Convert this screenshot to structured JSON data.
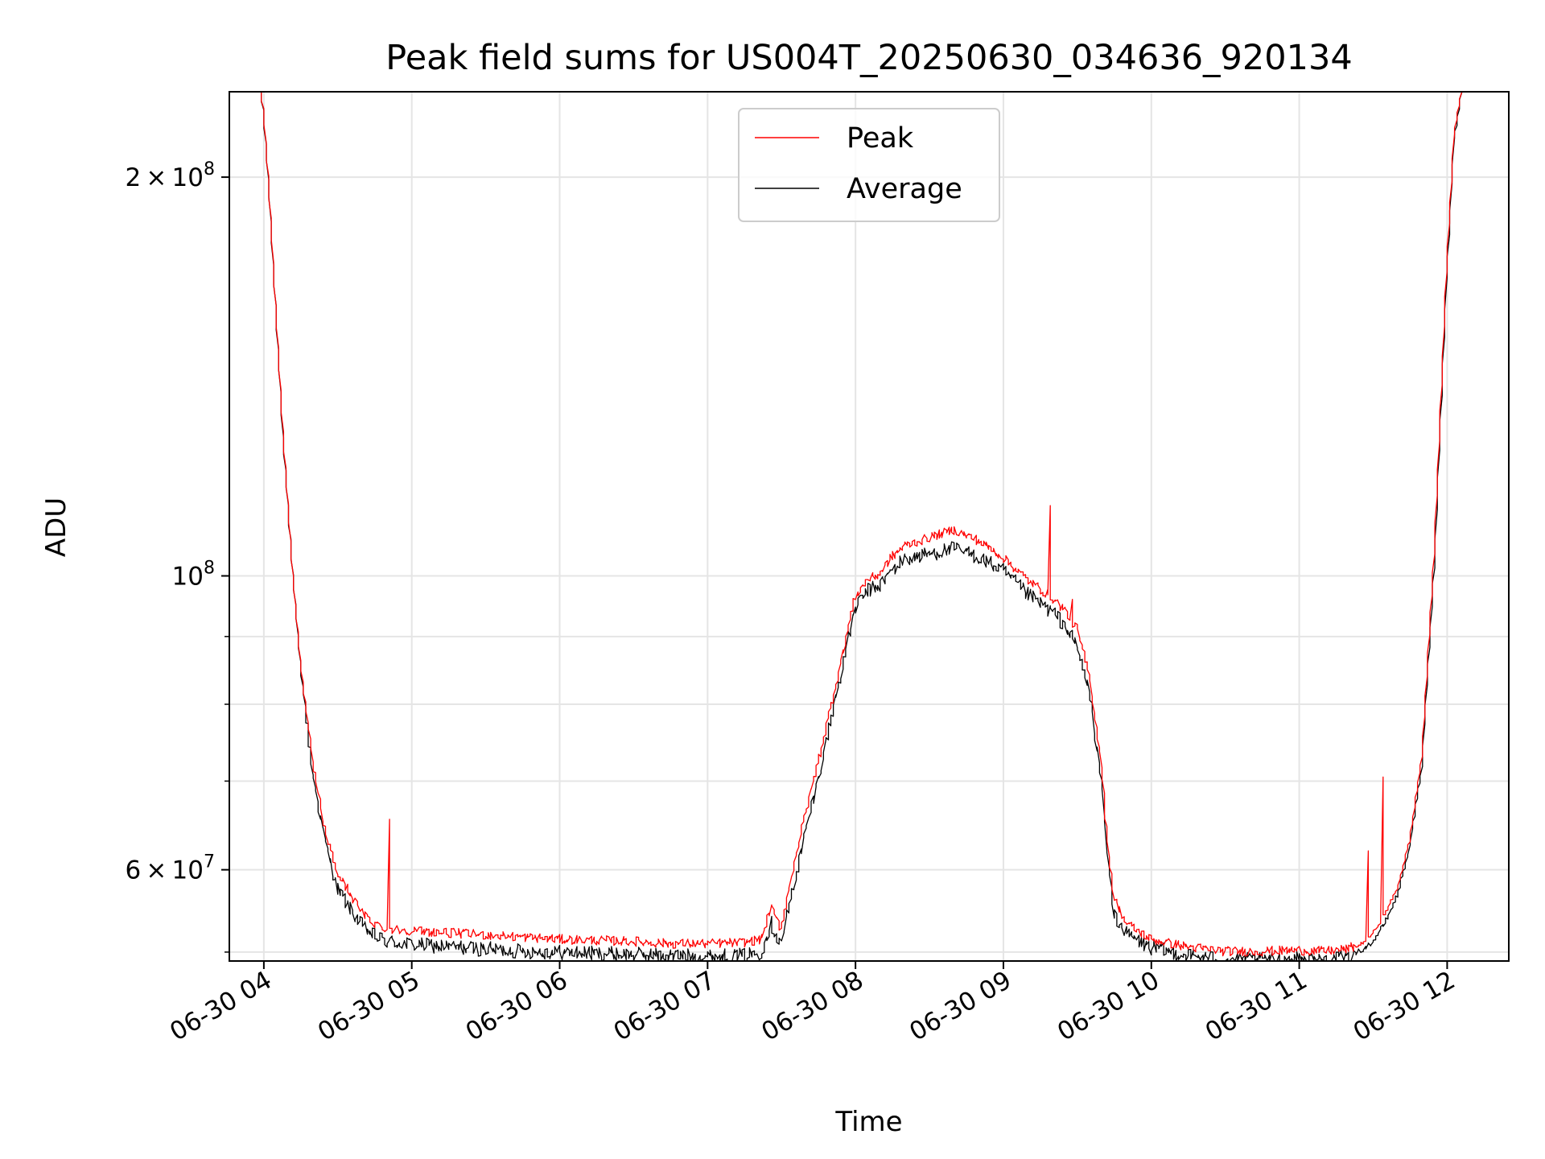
{
  "chart_data": {
    "type": "line",
    "title": "Peak field sums for US004T_20250630_034636_920134",
    "xlabel": "Time",
    "ylabel": "ADU",
    "y_scale": "log",
    "ylim": [
      51200000,
      232000000
    ],
    "xlim": [
      "2025-06-30 03:46",
      "2025-06-30 12:25"
    ],
    "grid": true,
    "legend_position": "upper center",
    "x_tick_labels": [
      "06-30 04",
      "06-30 05",
      "06-30 06",
      "06-30 07",
      "06-30 08",
      "06-30 09",
      "06-30 10",
      "06-30 11",
      "06-30 12"
    ],
    "x_ticks": [
      "2025-06-30 04:00",
      "2025-06-30 05:00",
      "2025-06-30 06:00",
      "2025-06-30 07:00",
      "2025-06-30 08:00",
      "2025-06-30 09:00",
      "2025-06-30 10:00",
      "2025-06-30 11:00",
      "2025-06-30 12:00"
    ],
    "y_major_ticks": [
      {
        "value": 60000000,
        "mantissa": "6",
        "exponent": "7"
      },
      {
        "value": 100000000,
        "mantissa": "",
        "exponent": "8"
      },
      {
        "value": 200000000,
        "mantissa": "2",
        "exponent": "8"
      }
    ],
    "y_minor_ticks": [
      52000000,
      70000000,
      80000000,
      90000000
    ],
    "series": [
      {
        "name": "Peak",
        "color": "#ff0000",
        "x": [
          "2025-06-30 03:59",
          "2025-06-30 04:00",
          "2025-06-30 04:02",
          "2025-06-30 04:05",
          "2025-06-30 04:08",
          "2025-06-30 04:12",
          "2025-06-30 04:15",
          "2025-06-30 04:20",
          "2025-06-30 04:25",
          "2025-06-30 04:30",
          "2025-06-30 04:35",
          "2025-06-30 04:40",
          "2025-06-30 04:45",
          "2025-06-30 04:50",
          "2025-06-30 05:00",
          "2025-06-30 05:15",
          "2025-06-30 05:30",
          "2025-06-30 05:45",
          "2025-06-30 06:00",
          "2025-06-30 06:15",
          "2025-06-30 06:30",
          "2025-06-30 06:45",
          "2025-06-30 07:00",
          "2025-06-30 07:15",
          "2025-06-30 07:22",
          "2025-06-30 07:26",
          "2025-06-30 07:30",
          "2025-06-30 07:35",
          "2025-06-30 07:40",
          "2025-06-30 07:45",
          "2025-06-30 07:50",
          "2025-06-30 07:55",
          "2025-06-30 08:00",
          "2025-06-30 08:05",
          "2025-06-30 08:10",
          "2025-06-30 08:15",
          "2025-06-30 08:20",
          "2025-06-30 08:30",
          "2025-06-30 08:40",
          "2025-06-30 08:50",
          "2025-06-30 09:00",
          "2025-06-30 09:10",
          "2025-06-30 09:20",
          "2025-06-30 09:25",
          "2025-06-30 09:30",
          "2025-06-30 09:35",
          "2025-06-30 09:40",
          "2025-06-30 09:42",
          "2025-06-30 09:45",
          "2025-06-30 09:50",
          "2025-06-30 10:00",
          "2025-06-30 10:15",
          "2025-06-30 10:30",
          "2025-06-30 10:45",
          "2025-06-30 11:00",
          "2025-06-30 11:10",
          "2025-06-30 11:20",
          "2025-06-30 11:25",
          "2025-06-30 11:30",
          "2025-06-30 11:35",
          "2025-06-30 11:40",
          "2025-06-30 11:45",
          "2025-06-30 11:50",
          "2025-06-30 11:55",
          "2025-06-30 12:00",
          "2025-06-30 12:03",
          "2025-06-30 12:06"
        ],
        "y": [
          232000000,
          225000000,
          200000000,
          160000000,
          128000000,
          100000000,
          86000000,
          72000000,
          64000000,
          59500000,
          57500000,
          55500000,
          54500000,
          54000000,
          53800000,
          53600000,
          53400000,
          53200000,
          53000000,
          52900000,
          52800000,
          52600000,
          52600000,
          52700000,
          53000000,
          56000000,
          54000000,
          60000000,
          66000000,
          72000000,
          79000000,
          87000000,
          96000000,
          99000000,
          100000000,
          103000000,
          105000000,
          106500000,
          108000000,
          106000000,
          103000000,
          99000000,
          96000000,
          94000000,
          91000000,
          84000000,
          72000000,
          64000000,
          57000000,
          54500000,
          53000000,
          52300000,
          51900000,
          51900000,
          52000000,
          51900000,
          52100000,
          52600000,
          53600000,
          55500000,
          58000000,
          63000000,
          73000000,
          104000000,
          170000000,
          215000000,
          232000000
        ],
        "spikes": [
          {
            "x": "2025-06-30 04:51",
            "y": 65500000
          },
          {
            "x": "2025-06-30 07:36",
            "y": 61500000
          },
          {
            "x": "2025-06-30 09:19",
            "y": 113000000
          },
          {
            "x": "2025-06-30 09:28",
            "y": 96000000
          },
          {
            "x": "2025-06-30 11:28",
            "y": 62000000
          },
          {
            "x": "2025-06-30 11:34",
            "y": 70500000
          }
        ]
      },
      {
        "name": "Average",
        "color": "#000000",
        "x": [
          "2025-06-30 03:59",
          "2025-06-30 04:00",
          "2025-06-30 04:02",
          "2025-06-30 04:05",
          "2025-06-30 04:08",
          "2025-06-30 04:12",
          "2025-06-30 04:15",
          "2025-06-30 04:20",
          "2025-06-30 04:25",
          "2025-06-30 04:30",
          "2025-06-30 04:35",
          "2025-06-30 04:40",
          "2025-06-30 04:45",
          "2025-06-30 04:50",
          "2025-06-30 05:00",
          "2025-06-30 05:15",
          "2025-06-30 05:30",
          "2025-06-30 05:45",
          "2025-06-30 06:00",
          "2025-06-30 06:15",
          "2025-06-30 06:30",
          "2025-06-30 06:45",
          "2025-06-30 07:00",
          "2025-06-30 07:15",
          "2025-06-30 07:22",
          "2025-06-30 07:26",
          "2025-06-30 07:30",
          "2025-06-30 07:35",
          "2025-06-30 07:40",
          "2025-06-30 07:45",
          "2025-06-30 07:50",
          "2025-06-30 07:55",
          "2025-06-30 08:00",
          "2025-06-30 08:05",
          "2025-06-30 08:10",
          "2025-06-30 08:15",
          "2025-06-30 08:20",
          "2025-06-30 08:30",
          "2025-06-30 08:40",
          "2025-06-30 08:50",
          "2025-06-30 09:00",
          "2025-06-30 09:10",
          "2025-06-30 09:20",
          "2025-06-30 09:25",
          "2025-06-30 09:30",
          "2025-06-30 09:35",
          "2025-06-30 09:40",
          "2025-06-30 09:42",
          "2025-06-30 09:45",
          "2025-06-30 09:50",
          "2025-06-30 10:00",
          "2025-06-30 10:15",
          "2025-06-30 10:30",
          "2025-06-30 10:45",
          "2025-06-30 11:00",
          "2025-06-30 11:10",
          "2025-06-30 11:20",
          "2025-06-30 11:25",
          "2025-06-30 11:30",
          "2025-06-30 11:35",
          "2025-06-30 11:40",
          "2025-06-30 11:45",
          "2025-06-30 11:50",
          "2025-06-30 11:55",
          "2025-06-30 12:00",
          "2025-06-30 12:03",
          "2025-06-30 12:06"
        ],
        "y": [
          232000000,
          225000000,
          200000000,
          160000000,
          128000000,
          100000000,
          86000000,
          71500000,
          63500000,
          58500000,
          56500000,
          54800000,
          53800000,
          53300000,
          53000000,
          52800000,
          52600000,
          52400000,
          52300000,
          52200000,
          52100000,
          52000000,
          51900000,
          52000000,
          52300000,
          55000000,
          53000000,
          58500000,
          64500000,
          70500000,
          78000000,
          86000000,
          95000000,
          98000000,
          99000000,
          101500000,
          103500000,
          104500000,
          105500000,
          104000000,
          101500000,
          97500000,
          94500000,
          92500000,
          89000000,
          82500000,
          70500000,
          63000000,
          56000000,
          54000000,
          52700000,
          52000000,
          51600000,
          51600000,
          51700000,
          51600000,
          51800000,
          52200000,
          53000000,
          54800000,
          57500000,
          62500000,
          72000000,
          102000000,
          168000000,
          214000000,
          232000000
        ]
      }
    ]
  }
}
